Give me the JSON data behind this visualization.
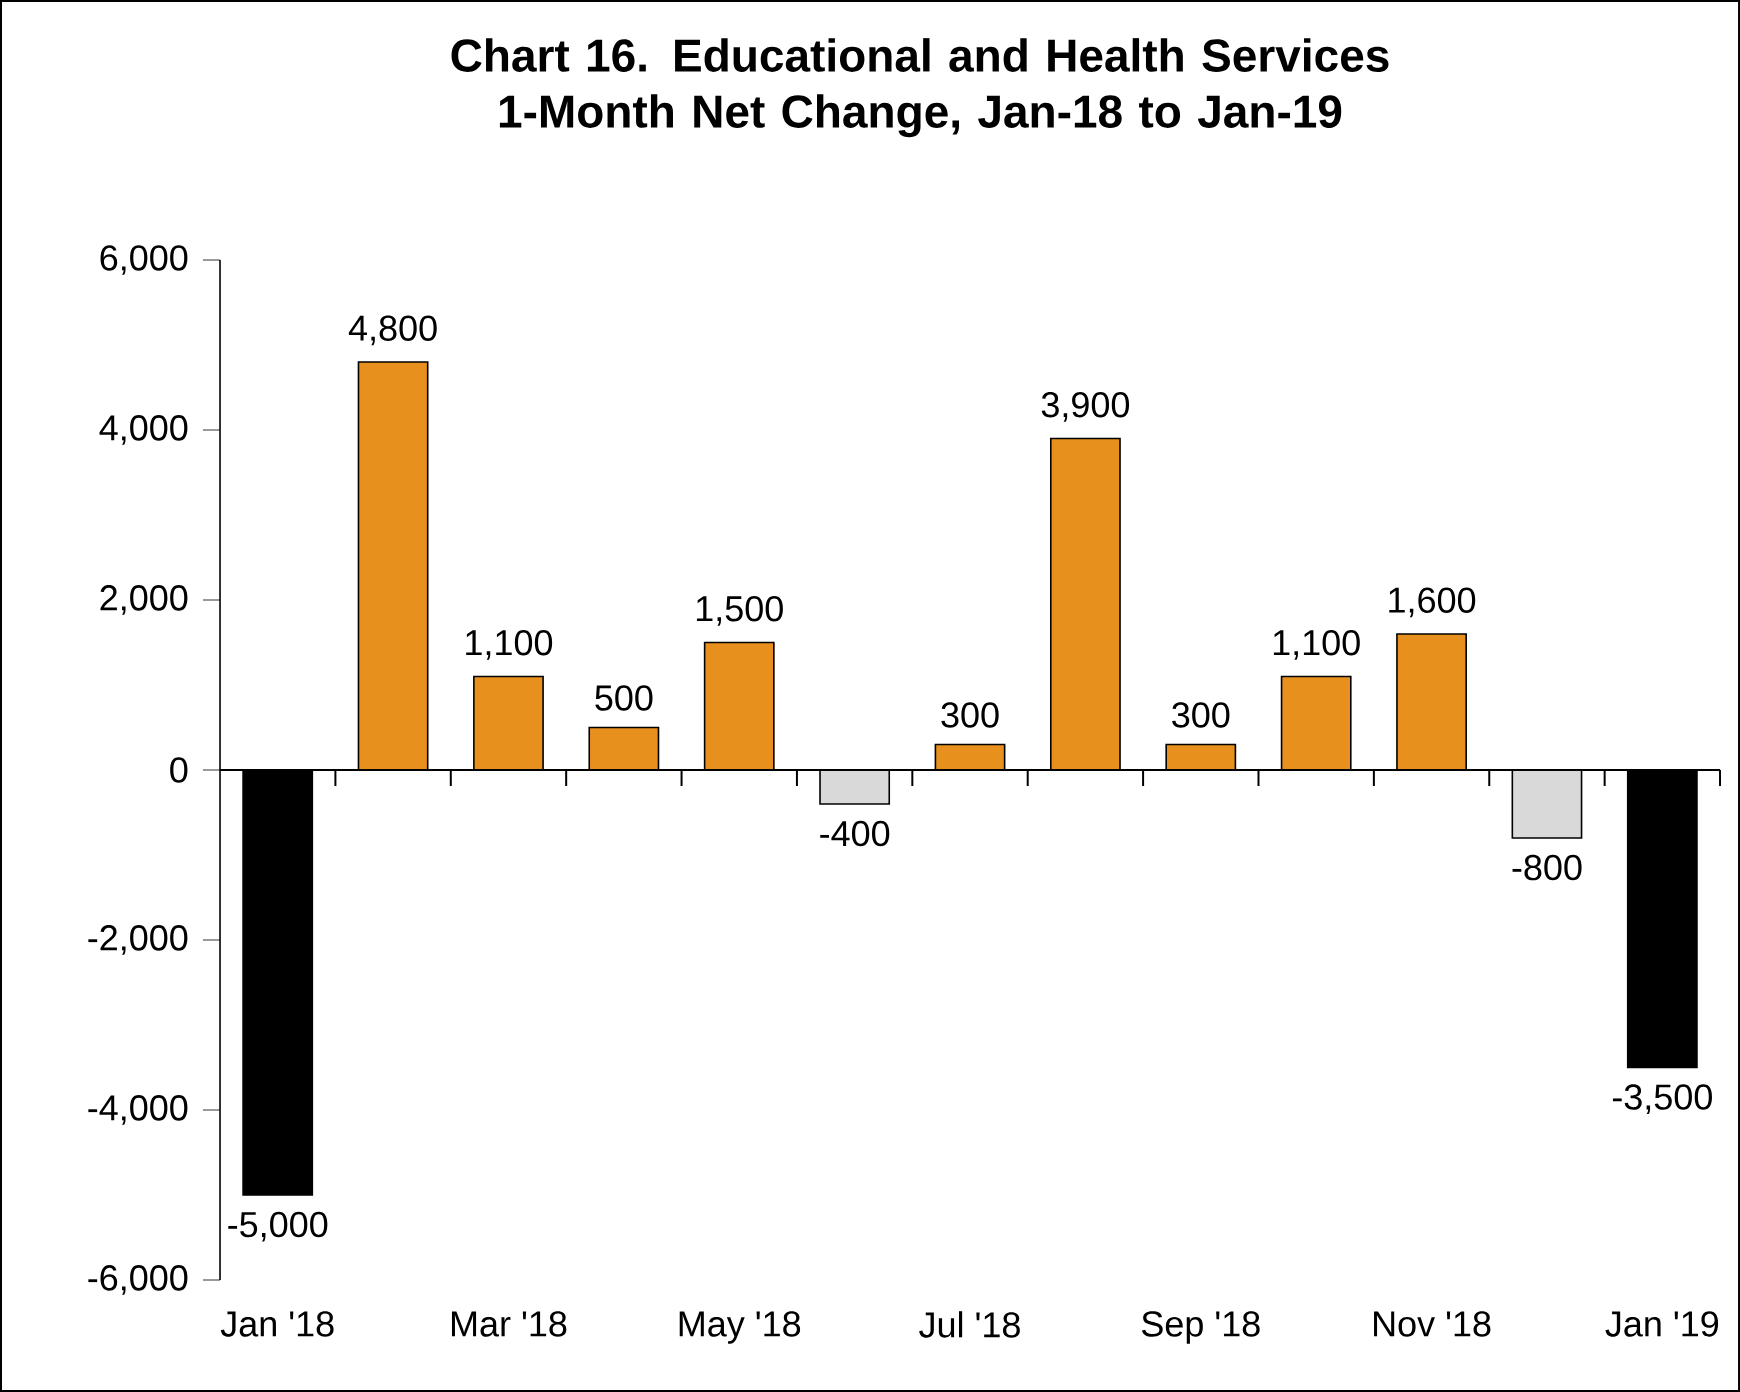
{
  "chart_data": {
    "type": "bar",
    "title": "Chart 16. Educational and Health Services 1-Month Net Change, Jan-18 to Jan-19",
    "categories": [
      "Jan '18",
      null,
      "Mar '18",
      null,
      "May '18",
      null,
      "Jul '18",
      null,
      "Sep '18",
      null,
      "Nov '18",
      null,
      "Jan '19"
    ],
    "values": [
      -5000,
      4800,
      1100,
      500,
      1500,
      -400,
      300,
      3900,
      300,
      1100,
      1600,
      -800,
      -3500
    ],
    "colors": [
      "#000000",
      "#e8901e",
      "#e8901e",
      "#e8901e",
      "#e8901e",
      "#d9d9d9",
      "#e8901e",
      "#e8901e",
      "#e8901e",
      "#e8901e",
      "#e8901e",
      "#d9d9d9",
      "#000000"
    ],
    "value_labels": [
      "-5,000",
      "4,800",
      "1,100",
      "500",
      "1,500",
      "-400",
      "300",
      "3,900",
      "300",
      "1,100",
      "1,600",
      "-800",
      "-3,500"
    ],
    "ylim": [
      -6000,
      6000
    ],
    "yticks": [
      {
        "value": -6000,
        "label": "-6,000"
      },
      {
        "value": -4000,
        "label": "-4,000"
      },
      {
        "value": -2000,
        "label": "-2,000"
      },
      0,
      {
        "value": 2000,
        "label": "2,000"
      },
      {
        "value": 4000,
        "label": "4,000"
      },
      {
        "value": 6000,
        "label": "6,000"
      }
    ]
  }
}
